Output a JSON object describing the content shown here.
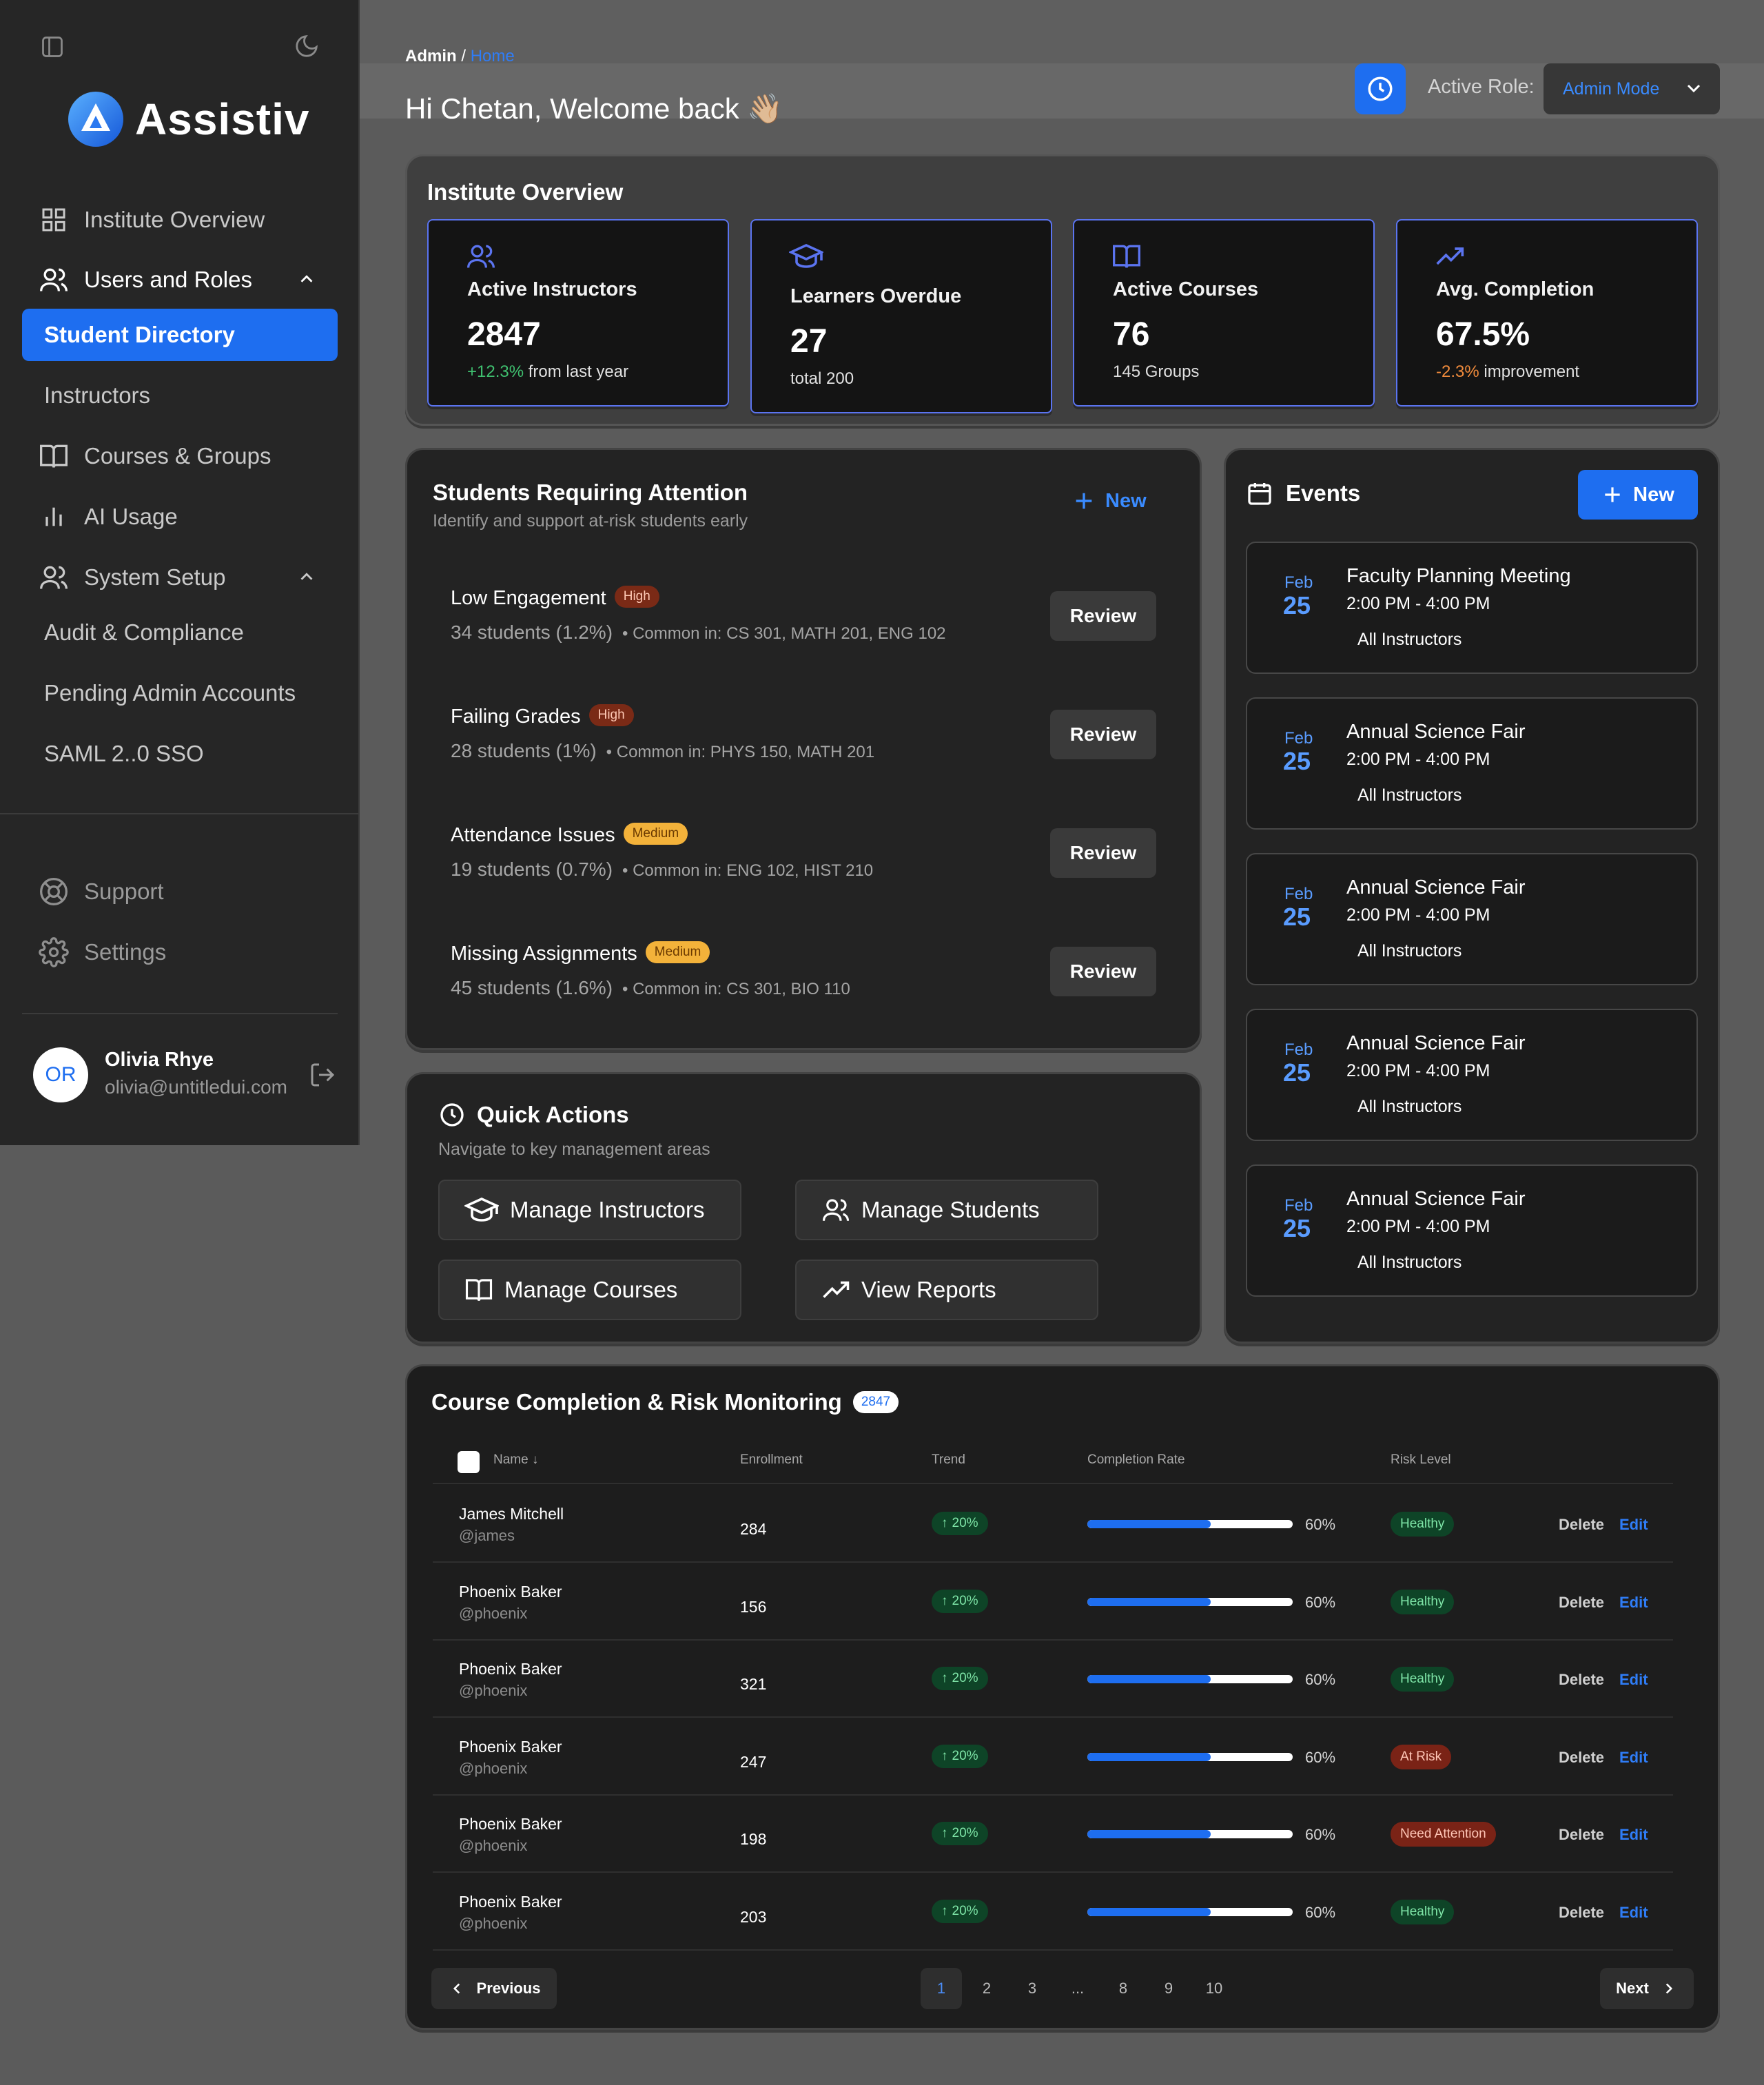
{
  "sidebar": {
    "brand": "Assistiv",
    "nav": {
      "institute_overview": "Institute Overview",
      "users_and_roles": "Users and Roles",
      "student_directory": "Student Directory",
      "instructors": "Instructors",
      "courses_groups": "Courses & Groups",
      "ai_usage": "AI Usage",
      "system_setup": "System Setup",
      "audit_compliance": "Audit & Compliance",
      "pending_admin": "Pending Admin Accounts",
      "saml": "SAML 2..0 SSO"
    },
    "support": "Support",
    "settings": "Settings",
    "user": {
      "initials": "OR",
      "name": "Olivia Rhye",
      "email": "olivia@untitledui.com"
    }
  },
  "header": {
    "breadcrumb_root": "Admin",
    "breadcrumb_sep": "/",
    "breadcrumb_current": "Home",
    "greeting": "Hi Chetan, Welcome back 👋🏼",
    "active_role_label": "Active Role:",
    "active_role_value": "Admin Mode"
  },
  "overview": {
    "title": "Institute Overview",
    "stats": [
      {
        "label": "Active Instructors",
        "value": "2847",
        "delta": "+12.3%",
        "note": " from last year"
      },
      {
        "label": "Learners Overdue",
        "value": "27",
        "note": "total 200"
      },
      {
        "label": "Active Courses",
        "value": "76",
        "note": "145 Groups"
      },
      {
        "label": "Avg. Completion",
        "value": "67.5%",
        "delta": "-2.3%",
        "note": " improvement"
      }
    ]
  },
  "attention": {
    "title": "Students Requiring Attention",
    "subtitle": "Identify and support at-risk students early",
    "new_label": "New",
    "review_label": "Review",
    "items": [
      {
        "title": "Low Engagement",
        "severity": "High",
        "count": "34 students (1.2%)",
        "common": "• Common in: CS 301, MATH 201, ENG 102"
      },
      {
        "title": "Failing Grades",
        "severity": "High",
        "count": "28 students (1%)",
        "common": "• Common in: PHYS 150, MATH 201"
      },
      {
        "title": "Attendance Issues",
        "severity": "Medium",
        "count": "19 students (0.7%)",
        "common": "• Common in: ENG 102, HIST 210"
      },
      {
        "title": "Missing Assignments",
        "severity": "Medium",
        "count": "45 students (1.6%)",
        "common": "• Common in: CS 301, BIO 110"
      }
    ]
  },
  "quick_actions": {
    "title": "Quick Actions",
    "subtitle": "Navigate to key management areas",
    "buttons": [
      "Manage Instructors",
      "Manage Students",
      "Manage Courses",
      "View Reports"
    ]
  },
  "events": {
    "title": "Events",
    "new_label": "New",
    "items": [
      {
        "month": "Feb",
        "day": "25",
        "title": "Faculty Planning Meeting",
        "time": "2:00 PM - 4:00 PM",
        "audience": "All Instructors"
      },
      {
        "month": "Feb",
        "day": "25",
        "title": "Annual Science Fair",
        "time": "2:00 PM - 4:00 PM",
        "audience": "All Instructors"
      },
      {
        "month": "Feb",
        "day": "25",
        "title": "Annual Science Fair",
        "time": "2:00 PM - 4:00 PM",
        "audience": "All Instructors"
      },
      {
        "month": "Feb",
        "day": "25",
        "title": "Annual Science Fair",
        "time": "2:00 PM - 4:00 PM",
        "audience": "All Instructors"
      },
      {
        "month": "Feb",
        "day": "25",
        "title": "Annual Science Fair",
        "time": "2:00 PM - 4:00 PM",
        "audience": "All Instructors"
      }
    ]
  },
  "table": {
    "title": "Course Completion & Risk Monitoring",
    "count_badge": "2847",
    "columns": [
      "Name",
      "Enrollment",
      "Trend",
      "Completion Rate",
      "Risk Level"
    ],
    "delete_label": "Delete",
    "edit_label": "Edit",
    "rows": [
      {
        "name": "James Mitchell",
        "handle": "@james",
        "enrollment": "284",
        "trend": "20%",
        "completion_pct": 60,
        "completion": "60%",
        "risk": "Healthy"
      },
      {
        "name": "Phoenix Baker",
        "handle": "@phoenix",
        "enrollment": "156",
        "trend": "20%",
        "completion_pct": 60,
        "completion": "60%",
        "risk": "Healthy"
      },
      {
        "name": "Phoenix Baker",
        "handle": "@phoenix",
        "enrollment": "321",
        "trend": "20%",
        "completion_pct": 60,
        "completion": "60%",
        "risk": "Healthy"
      },
      {
        "name": "Phoenix Baker",
        "handle": "@phoenix",
        "enrollment": "247",
        "trend": "20%",
        "completion_pct": 60,
        "completion": "60%",
        "risk": "At Risk"
      },
      {
        "name": "Phoenix Baker",
        "handle": "@phoenix",
        "enrollment": "198",
        "trend": "20%",
        "completion_pct": 60,
        "completion": "60%",
        "risk": "Need Attention"
      },
      {
        "name": "Phoenix Baker",
        "handle": "@phoenix",
        "enrollment": "203",
        "trend": "20%",
        "completion_pct": 60,
        "completion": "60%",
        "risk": "Healthy"
      }
    ],
    "pagination": {
      "previous": "Previous",
      "next": "Next",
      "pages": [
        "1",
        "2",
        "3",
        "...",
        "8",
        "9",
        "10"
      ],
      "current": "1"
    }
  },
  "colors": {
    "accent": "#1e6ef0",
    "page_bg": "#5b5b5b",
    "sidebar_bg": "#262626",
    "panel_bg": "#232323",
    "healthy": "#0e4427",
    "risk": "#7a2316",
    "badge_medium": "#f3b23a"
  }
}
